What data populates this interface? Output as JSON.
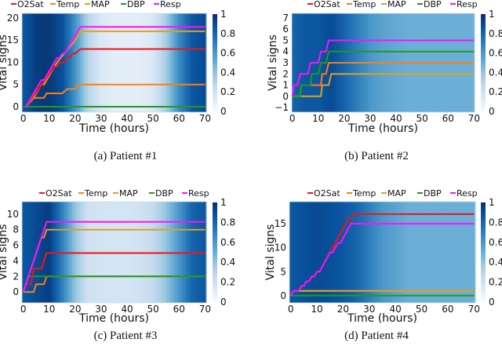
{
  "legend_labels": [
    "O2Sat",
    "Temp",
    "MAP",
    "DBP",
    "Resp"
  ],
  "colors": {
    "O2Sat": "#f01414",
    "Temp": "#ff7f0e",
    "MAP": "#e0a020",
    "DBP": "#1f9a1f",
    "Resp": "#ff10ff"
  },
  "colorbar_ticks": [
    "0",
    "0.2",
    "0.4",
    "0.6",
    "0.8",
    "1"
  ],
  "chart_data": [
    {
      "type": "line",
      "caption": "(a)  Patient #1",
      "xlabel": "Time (hours)",
      "ylabel": "Vital signs",
      "xlim": [
        -0.5,
        70.5
      ],
      "ylim": [
        -1.24,
        21.06
      ],
      "xticks": [
        "0",
        "10",
        "20",
        "30",
        "40",
        "50",
        "60",
        "70"
      ],
      "xtick_values": [
        0,
        10,
        20,
        30,
        40,
        50,
        60,
        70
      ],
      "yticks": [
        "0",
        "5",
        "10",
        "15",
        "20"
      ],
      "ytick_values": [
        0,
        5,
        10,
        15,
        20
      ],
      "attention_times": [
        0,
        5,
        10,
        15,
        20,
        25,
        30,
        35,
        40,
        45,
        50,
        55,
        60,
        65,
        70
      ],
      "attention": [
        0.85,
        0.95,
        0.97,
        0.88,
        0.62,
        0.3,
        0.15,
        0.1,
        0.1,
        0.1,
        0.15,
        0.35,
        0.65,
        0.85,
        0.9
      ],
      "series": [
        {
          "name": "DBP",
          "points": [
            [
              0,
              0
            ],
            [
              70,
              0
            ]
          ]
        },
        {
          "name": "Temp",
          "points": [
            [
              1,
              0
            ],
            [
              4,
              2
            ],
            [
              8,
              2
            ],
            [
              9,
              3
            ],
            [
              15,
              3
            ],
            [
              17,
              4
            ],
            [
              20,
              4
            ],
            [
              21,
              5
            ],
            [
              70,
              5
            ]
          ]
        },
        {
          "name": "MAP",
          "points": [
            [
              1,
              0
            ],
            [
              4,
              2
            ],
            [
              7,
              5
            ],
            [
              8,
              5
            ],
            [
              13,
              10
            ],
            [
              20,
              15
            ],
            [
              22,
              17
            ],
            [
              70,
              17
            ]
          ]
        },
        {
          "name": "O2Sat",
          "points": [
            [
              1,
              0
            ],
            [
              12,
              9
            ],
            [
              13,
              9
            ],
            [
              14,
              10
            ],
            [
              16,
              10
            ],
            [
              17,
              11
            ],
            [
              18,
              11
            ],
            [
              19,
              12
            ],
            [
              20,
              12
            ],
            [
              22,
              13
            ],
            [
              70,
              13
            ]
          ]
        },
        {
          "name": "Resp",
          "points": [
            [
              1,
              0
            ],
            [
              7,
              6
            ],
            [
              8,
              6
            ],
            [
              13,
              11
            ],
            [
              14,
              11
            ],
            [
              15,
              12
            ],
            [
              16,
              12
            ],
            [
              22,
              18
            ],
            [
              70,
              18
            ]
          ]
        }
      ]
    },
    {
      "type": "line",
      "caption": "(b)  Patient #2",
      "xlabel": "Time (hours)",
      "ylabel": "Vital signs",
      "xlim": [
        -0.2,
        70.2
      ],
      "ylim": [
        -1.42,
        7.42
      ],
      "xticks": [
        "0",
        "10",
        "20",
        "30",
        "40",
        "50",
        "60",
        "70"
      ],
      "xtick_values": [
        0,
        10,
        20,
        30,
        40,
        50,
        60,
        70
      ],
      "yticks": [
        "−1",
        "0",
        "1",
        "2",
        "3",
        "4",
        "5",
        "6",
        "7"
      ],
      "ytick_values": [
        -1,
        0,
        1,
        2,
        3,
        4,
        5,
        6,
        7
      ],
      "attention_times": [
        0,
        5,
        10,
        15,
        20,
        25,
        30,
        35,
        40,
        45,
        50,
        55,
        60,
        65,
        70
      ],
      "attention": [
        0.8,
        0.85,
        0.85,
        0.9,
        0.8,
        0.7,
        0.6,
        0.55,
        0.52,
        0.5,
        0.5,
        0.5,
        0.5,
        0.5,
        0.5
      ],
      "series": [
        {
          "name": "O2Sat",
          "points": []
        },
        {
          "name": "MAP",
          "points": [
            [
              0,
              0
            ],
            [
              11,
              0
            ],
            [
              11.5,
              1
            ],
            [
              14,
              1
            ],
            [
              15,
              2
            ],
            [
              70,
              2
            ]
          ]
        },
        {
          "name": "Temp",
          "points": [
            [
              0,
              0
            ],
            [
              3,
              0
            ],
            [
              3.5,
              1
            ],
            [
              11,
              1
            ],
            [
              11.5,
              2
            ],
            [
              13,
              2
            ],
            [
              14,
              3
            ],
            [
              70,
              3
            ]
          ]
        },
        {
          "name": "DBP",
          "points": [
            [
              0,
              0
            ],
            [
              3,
              0
            ],
            [
              3.5,
              1
            ],
            [
              7,
              1
            ],
            [
              7.5,
              2
            ],
            [
              10,
              2
            ],
            [
              11,
              3
            ],
            [
              13,
              3
            ],
            [
              14,
              4
            ],
            [
              70,
              4
            ]
          ]
        },
        {
          "name": "Resp",
          "points": [
            [
              0,
              0
            ],
            [
              0.5,
              1
            ],
            [
              2,
              1
            ],
            [
              3,
              2
            ],
            [
              6,
              2
            ],
            [
              7,
              3
            ],
            [
              10,
              3
            ],
            [
              11,
              4
            ],
            [
              13,
              4
            ],
            [
              14,
              5
            ],
            [
              70,
              5
            ]
          ]
        }
      ]
    },
    {
      "type": "line",
      "caption": "(c)  Patient #3",
      "xlabel": "Time (hours)",
      "ylabel": "Vital signs",
      "xlim": [
        -0.5,
        70.5
      ],
      "ylim": [
        -1.4,
        11.6
      ],
      "xticks": [
        "0",
        "10",
        "20",
        "30",
        "40",
        "50",
        "60",
        "70"
      ],
      "xtick_values": [
        0,
        10,
        20,
        30,
        40,
        50,
        60,
        70
      ],
      "yticks": [
        "0",
        "2",
        "4",
        "6",
        "8",
        "10"
      ],
      "ytick_values": [
        0,
        2,
        4,
        6,
        8,
        10
      ],
      "attention_times": [
        0,
        5,
        10,
        15,
        20,
        25,
        30,
        35,
        40,
        45,
        50,
        55,
        60,
        65,
        70
      ],
      "attention": [
        0.85,
        0.9,
        0.95,
        0.7,
        0.4,
        0.2,
        0.18,
        0.18,
        0.18,
        0.2,
        0.25,
        0.4,
        0.6,
        0.8,
        0.85
      ],
      "series": [
        {
          "name": "Temp",
          "points": [
            [
              0,
              0
            ],
            [
              4,
              0
            ],
            [
              5,
              1
            ],
            [
              8,
              1
            ],
            [
              9,
              2
            ],
            [
              70,
              2
            ]
          ]
        },
        {
          "name": "DBP",
          "points": [
            [
              2,
              2
            ],
            [
              70,
              2
            ]
          ]
        },
        {
          "name": "O2Sat",
          "points": [
            [
              0,
              0
            ],
            [
              1,
              1
            ],
            [
              3,
              1
            ],
            [
              4,
              3
            ],
            [
              7,
              3
            ],
            [
              9,
              5
            ],
            [
              70,
              5
            ]
          ]
        },
        {
          "name": "MAP",
          "points": [
            [
              0,
              0
            ],
            [
              7,
              7
            ],
            [
              8,
              7
            ],
            [
              9,
              8
            ],
            [
              70,
              8
            ]
          ]
        },
        {
          "name": "Resp",
          "points": [
            [
              0,
              0
            ],
            [
              9,
              9
            ],
            [
              70,
              9
            ]
          ]
        }
      ]
    },
    {
      "type": "line",
      "caption": "(d)  Patient #4",
      "xlabel": "Time (hours)",
      "ylabel": "Vital signs",
      "xlim": [
        -0.5,
        70.5
      ],
      "ylim": [
        -1.5,
        19.6
      ],
      "xticks": [
        "0",
        "10",
        "20",
        "30",
        "40",
        "50",
        "60",
        "70"
      ],
      "xtick_values": [
        0,
        10,
        20,
        30,
        40,
        50,
        60,
        70
      ],
      "yticks": [
        "0",
        "5",
        "10",
        "15"
      ],
      "ytick_values": [
        0,
        5,
        10,
        15
      ],
      "attention_times": [
        0,
        5,
        10,
        15,
        20,
        25,
        30,
        35,
        40,
        45,
        50,
        55,
        60,
        65,
        70
      ],
      "attention": [
        0.85,
        0.88,
        0.9,
        0.88,
        0.85,
        0.8,
        0.7,
        0.6,
        0.55,
        0.5,
        0.5,
        0.5,
        0.5,
        0.5,
        0.5
      ],
      "series": [
        {
          "name": "Temp",
          "points": [
            [
              0,
              0
            ],
            [
              1,
              1
            ],
            [
              70,
              1
            ]
          ]
        },
        {
          "name": "MAP",
          "points": [
            [
              0,
              0
            ],
            [
              1,
              1
            ],
            [
              70,
              1
            ]
          ]
        },
        {
          "name": "DBP",
          "points": [
            [
              0,
              0
            ],
            [
              70,
              0
            ]
          ]
        },
        {
          "name": "O2Sat",
          "points": [
            [
              0,
              0
            ],
            [
              1,
              1
            ],
            [
              3,
              1
            ],
            [
              4,
              2
            ],
            [
              5,
              2
            ],
            [
              6,
              3
            ],
            [
              7,
              3
            ],
            [
              8,
              4
            ],
            [
              9,
              4
            ],
            [
              10,
              5
            ],
            [
              11,
              5
            ],
            [
              15,
              9
            ],
            [
              22,
              16
            ],
            [
              23,
              16
            ],
            [
              24,
              17
            ],
            [
              70,
              17
            ]
          ]
        },
        {
          "name": "Resp",
          "points": [
            [
              0,
              0
            ],
            [
              1,
              1
            ],
            [
              3,
              1
            ],
            [
              4,
              2
            ],
            [
              5,
              2
            ],
            [
              6,
              3
            ],
            [
              7,
              3
            ],
            [
              8,
              4
            ],
            [
              9,
              4
            ],
            [
              10,
              5
            ],
            [
              11,
              5
            ],
            [
              15,
              9
            ],
            [
              16,
              9
            ],
            [
              18,
              11
            ],
            [
              19,
              11
            ],
            [
              23,
              15
            ],
            [
              70,
              15
            ]
          ]
        }
      ]
    }
  ]
}
